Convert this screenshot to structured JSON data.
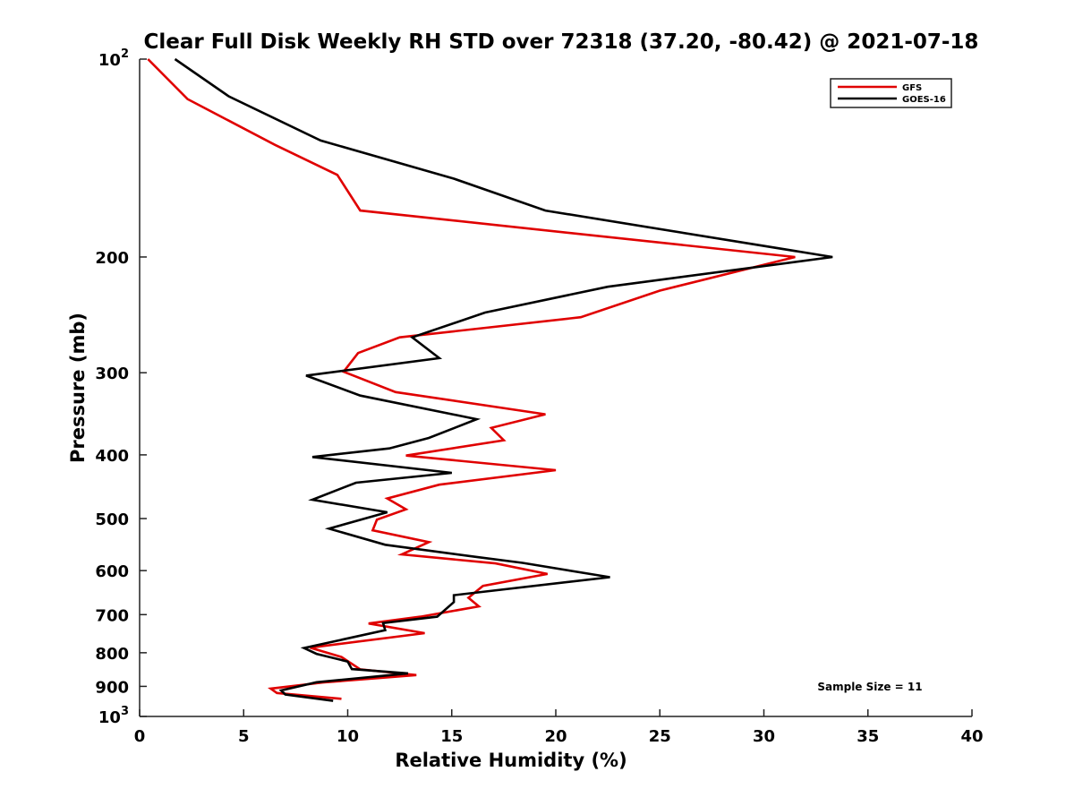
{
  "chart_data": {
    "type": "line",
    "title": "Clear Full Disk Weekly RH STD over 72318 (37.20, -80.42) @ 2021-07-18",
    "xlabel": "Relative Humidity (%)",
    "ylabel": "Pressure (mb)",
    "xlim": [
      0,
      40
    ],
    "ylim": [
      100,
      1000
    ],
    "y_scale": "log",
    "y_reversed": true,
    "x_ticks": [
      "0",
      "5",
      "10",
      "15",
      "20",
      "25",
      "30",
      "35",
      "40"
    ],
    "y_ticks": [
      {
        "value": 100,
        "base": "10",
        "exp": "2"
      },
      {
        "value": 200,
        "label": "200"
      },
      {
        "value": 300,
        "label": "300"
      },
      {
        "value": 400,
        "label": "400"
      },
      {
        "value": 500,
        "label": "500"
      },
      {
        "value": 600,
        "label": "600"
      },
      {
        "value": 700,
        "label": "700"
      },
      {
        "value": 800,
        "label": "800"
      },
      {
        "value": 900,
        "label": "900"
      },
      {
        "value": 1000,
        "base": "10",
        "exp": "3"
      }
    ],
    "legend_position": "top-right",
    "annotation": "Sample Size = 11",
    "series": [
      {
        "name": "GFS",
        "color": "#e00000",
        "points": [
          [
            0.4,
            100
          ],
          [
            2.3,
            115
          ],
          [
            6.5,
            135
          ],
          [
            9.5,
            150
          ],
          [
            10.6,
            170
          ],
          [
            31.5,
            200
          ],
          [
            25.0,
            225
          ],
          [
            21.2,
            247
          ],
          [
            12.5,
            265
          ],
          [
            10.5,
            280
          ],
          [
            9.8,
            299
          ],
          [
            12.3,
            321
          ],
          [
            19.5,
            347
          ],
          [
            16.9,
            364
          ],
          [
            17.5,
            380
          ],
          [
            12.8,
            401
          ],
          [
            20.0,
            422
          ],
          [
            14.4,
            444
          ],
          [
            11.9,
            466
          ],
          [
            12.8,
            484
          ],
          [
            11.4,
            502
          ],
          [
            11.2,
            521
          ],
          [
            13.9,
            543
          ],
          [
            12.6,
            567
          ],
          [
            17.1,
            585
          ],
          [
            19.6,
            607
          ],
          [
            16.5,
            633
          ],
          [
            15.8,
            660
          ],
          [
            16.3,
            680
          ],
          [
            13.5,
            705
          ],
          [
            11.0,
            722
          ],
          [
            13.7,
            747
          ],
          [
            8.2,
            786
          ],
          [
            9.7,
            812
          ],
          [
            10.6,
            848
          ],
          [
            13.3,
            865
          ],
          [
            8.8,
            888
          ],
          [
            6.3,
            907
          ],
          [
            6.6,
            921
          ],
          [
            9.7,
            940
          ]
        ]
      },
      {
        "name": "GOES-16",
        "color": "#000000",
        "points": [
          [
            1.7,
            100
          ],
          [
            4.3,
            114
          ],
          [
            8.7,
            133
          ],
          [
            15.1,
            152
          ],
          [
            19.5,
            170
          ],
          [
            33.3,
            200
          ],
          [
            22.5,
            222
          ],
          [
            16.6,
            243
          ],
          [
            13.1,
            265
          ],
          [
            14.4,
            285
          ],
          [
            8.0,
            303
          ],
          [
            10.6,
            325
          ],
          [
            16.2,
            353
          ],
          [
            13.9,
            377
          ],
          [
            12.0,
            391
          ],
          [
            8.3,
            403
          ],
          [
            15.0,
            426
          ],
          [
            10.4,
            441
          ],
          [
            8.3,
            468
          ],
          [
            11.9,
            489
          ],
          [
            9.1,
            518
          ],
          [
            11.8,
            548
          ],
          [
            16.2,
            572
          ],
          [
            18.4,
            584
          ],
          [
            22.6,
            614
          ],
          [
            15.1,
            654
          ],
          [
            15.1,
            670
          ],
          [
            14.3,
            705
          ],
          [
            11.7,
            721
          ],
          [
            11.8,
            739
          ],
          [
            7.9,
            787
          ],
          [
            8.5,
            803
          ],
          [
            10.0,
            825
          ],
          [
            10.2,
            847
          ],
          [
            12.9,
            860
          ],
          [
            8.5,
            887
          ],
          [
            6.8,
            913
          ],
          [
            7.0,
            926
          ],
          [
            9.3,
            947
          ]
        ]
      }
    ]
  }
}
